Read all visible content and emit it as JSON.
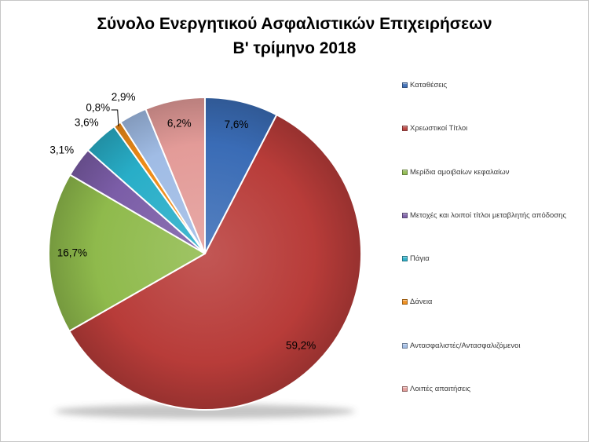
{
  "title": {
    "line1": "Σύνολο Ενεργητικού Ασφαλιστικών Επιχειρήσεων",
    "line2": "Β' τρίμηνο 2018"
  },
  "chart_data": {
    "type": "pie",
    "title": "Σύνολο Ενεργητικού Ασφαλιστικών Επιχειρήσεων Β' τρίμηνο 2018",
    "categories": [
      "Καταθέσεις",
      "Χρεωστικοί Τίτλοι",
      "Μερίδια αμοιβαίων κεφαλαίων",
      "Μετοχές και λοιποί τίτλοι μεταβλητής απόδοσης",
      "Πάγια",
      "Δάνεια",
      "Αντασφαλιστές/Αντασφαλιζόμενοι",
      "Λοιπές απαιτήσεις"
    ],
    "values": [
      7.6,
      59.2,
      16.7,
      3.1,
      3.6,
      0.8,
      2.9,
      6.2
    ],
    "labels": [
      "7,6%",
      "59,2%",
      "16,7%",
      "3,1%",
      "3,6%",
      "0,8%",
      "2,9%",
      "6,2%"
    ],
    "colors": [
      "#3A6CB6",
      "#B83C39",
      "#8FBA4C",
      "#7B5DA7",
      "#28AEC8",
      "#EE8B17",
      "#A0BCE5",
      "#E39B98"
    ],
    "legend_position": "right",
    "start_angle_deg": 0,
    "direction": "clockwise",
    "data_label_format": "percent, comma decimal separator"
  }
}
